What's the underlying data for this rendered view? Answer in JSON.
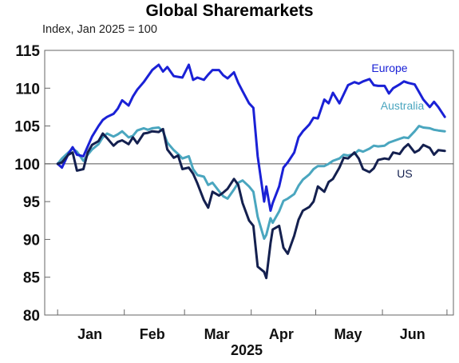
{
  "chart_data": {
    "type": "line",
    "title": "Global Sharemarkets",
    "subtitle": "Index, Jan 2025 = 100",
    "xlabel": "2025",
    "x_tick_labels": [
      "Jan",
      "Feb",
      "Mar",
      "Apr",
      "May",
      "Jun"
    ],
    "ylim": [
      80,
      115
    ],
    "yticks": [
      80,
      85,
      90,
      95,
      100,
      105,
      110,
      115
    ],
    "grid": false,
    "reference_line": 100,
    "series": [
      {
        "name": "Europe",
        "color": "#1a21d6",
        "values": [
          [
            "2025-01-01",
            100
          ],
          [
            "2025-01-03",
            99.5
          ],
          [
            "2025-01-06",
            101.3
          ],
          [
            "2025-01-08",
            102.2
          ],
          [
            "2025-01-10",
            101.2
          ],
          [
            "2025-01-13",
            101
          ],
          [
            "2025-01-15",
            102.3
          ],
          [
            "2025-01-17",
            103.6
          ],
          [
            "2025-01-20",
            105
          ],
          [
            "2025-01-22",
            105.8
          ],
          [
            "2025-01-24",
            106.2
          ],
          [
            "2025-01-27",
            106.6
          ],
          [
            "2025-01-29",
            107.3
          ],
          [
            "2025-01-31",
            108.4
          ],
          [
            "2025-02-03",
            107.7
          ],
          [
            "2025-02-05",
            108.9
          ],
          [
            "2025-02-07",
            109.8
          ],
          [
            "2025-02-10",
            110.8
          ],
          [
            "2025-02-12",
            111.6
          ],
          [
            "2025-02-14",
            112.4
          ],
          [
            "2025-02-17",
            113.1
          ],
          [
            "2025-02-19",
            112.2
          ],
          [
            "2025-02-21",
            112.8
          ],
          [
            "2025-02-24",
            111.6
          ],
          [
            "2025-02-26",
            111.5
          ],
          [
            "2025-02-28",
            111.4
          ],
          [
            "2025-03-03",
            113.1
          ],
          [
            "2025-03-05",
            111.1
          ],
          [
            "2025-03-07",
            111.4
          ],
          [
            "2025-03-10",
            111.1
          ],
          [
            "2025-03-12",
            111.8
          ],
          [
            "2025-03-14",
            112.4
          ],
          [
            "2025-03-17",
            112.4
          ],
          [
            "2025-03-19",
            111.7
          ],
          [
            "2025-03-21",
            111.3
          ],
          [
            "2025-03-24",
            112.1
          ],
          [
            "2025-03-26",
            110.7
          ],
          [
            "2025-03-28",
            109.6
          ],
          [
            "2025-03-31",
            108
          ],
          [
            "2025-04-02",
            107.4
          ],
          [
            "2025-04-04",
            101
          ],
          [
            "2025-04-07",
            95
          ],
          [
            "2025-04-08",
            97
          ],
          [
            "2025-04-10",
            93.8
          ],
          [
            "2025-04-11",
            94.8
          ],
          [
            "2025-04-14",
            97
          ],
          [
            "2025-04-16",
            99.5
          ],
          [
            "2025-04-18",
            100.2
          ],
          [
            "2025-04-21",
            101.5
          ],
          [
            "2025-04-23",
            103.5
          ],
          [
            "2025-04-25",
            104.3
          ],
          [
            "2025-04-28",
            105.2
          ],
          [
            "2025-04-30",
            106.1
          ],
          [
            "2025-05-02",
            106
          ],
          [
            "2025-05-05",
            108.5
          ],
          [
            "2025-05-07",
            108
          ],
          [
            "2025-05-09",
            109.4
          ],
          [
            "2025-05-12",
            108
          ],
          [
            "2025-05-14",
            109.2
          ],
          [
            "2025-05-16",
            110.4
          ],
          [
            "2025-05-19",
            110.8
          ],
          [
            "2025-05-21",
            110.6
          ],
          [
            "2025-05-23",
            110.9
          ],
          [
            "2025-05-26",
            111.2
          ],
          [
            "2025-05-28",
            110.4
          ],
          [
            "2025-05-30",
            110.3
          ],
          [
            "2025-06-02",
            110.3
          ],
          [
            "2025-06-04",
            109.3
          ],
          [
            "2025-06-06",
            110
          ],
          [
            "2025-06-09",
            110.5
          ],
          [
            "2025-06-11",
            110.9
          ],
          [
            "2025-06-13",
            110.7
          ],
          [
            "2025-06-16",
            110.5
          ],
          [
            "2025-06-18",
            109.5
          ],
          [
            "2025-06-20",
            108.5
          ],
          [
            "2025-06-23",
            107.5
          ],
          [
            "2025-06-25",
            108.2
          ],
          [
            "2025-06-27",
            107.5
          ],
          [
            "2025-06-30",
            106.2
          ]
        ]
      },
      {
        "name": "Australia",
        "color": "#4aa6bf",
        "values": [
          [
            "2025-01-01",
            100
          ],
          [
            "2025-01-03",
            100.7
          ],
          [
            "2025-01-06",
            101.5
          ],
          [
            "2025-01-08",
            102
          ],
          [
            "2025-01-10",
            101.6
          ],
          [
            "2025-01-13",
            100.4
          ],
          [
            "2025-01-15",
            101.2
          ],
          [
            "2025-01-17",
            101.9
          ],
          [
            "2025-01-20",
            102.6
          ],
          [
            "2025-01-22",
            103.5
          ],
          [
            "2025-01-24",
            104
          ],
          [
            "2025-01-27",
            103.6
          ],
          [
            "2025-01-29",
            103.9
          ],
          [
            "2025-01-31",
            104.3
          ],
          [
            "2025-02-03",
            103.5
          ],
          [
            "2025-02-05",
            103.7
          ],
          [
            "2025-02-07",
            104.4
          ],
          [
            "2025-02-10",
            104.7
          ],
          [
            "2025-02-12",
            104.5
          ],
          [
            "2025-02-14",
            104.7
          ],
          [
            "2025-02-17",
            104.8
          ],
          [
            "2025-02-19",
            104.3
          ],
          [
            "2025-02-21",
            102.8
          ],
          [
            "2025-02-24",
            101.8
          ],
          [
            "2025-02-26",
            101.3
          ],
          [
            "2025-02-28",
            100.7
          ],
          [
            "2025-03-03",
            101
          ],
          [
            "2025-03-05",
            99.3
          ],
          [
            "2025-03-07",
            98.5
          ],
          [
            "2025-03-10",
            98.3
          ],
          [
            "2025-03-12",
            97.2
          ],
          [
            "2025-03-14",
            97.5
          ],
          [
            "2025-03-17",
            96.4
          ],
          [
            "2025-03-19",
            95.7
          ],
          [
            "2025-03-21",
            95.4
          ],
          [
            "2025-03-24",
            96.6
          ],
          [
            "2025-03-26",
            97.5
          ],
          [
            "2025-03-28",
            97.8
          ],
          [
            "2025-03-31",
            97
          ],
          [
            "2025-04-02",
            96.3
          ],
          [
            "2025-04-04",
            93
          ],
          [
            "2025-04-07",
            90.1
          ],
          [
            "2025-04-08",
            90.6
          ],
          [
            "2025-04-10",
            92.8
          ],
          [
            "2025-04-11",
            92.2
          ],
          [
            "2025-04-14",
            93.7
          ],
          [
            "2025-04-16",
            95.1
          ],
          [
            "2025-04-18",
            95.4
          ],
          [
            "2025-04-21",
            96
          ],
          [
            "2025-04-23",
            97.1
          ],
          [
            "2025-04-25",
            97.9
          ],
          [
            "2025-04-28",
            98.6
          ],
          [
            "2025-04-30",
            99.3
          ],
          [
            "2025-05-02",
            99.7
          ],
          [
            "2025-05-05",
            99.7
          ],
          [
            "2025-05-07",
            100
          ],
          [
            "2025-05-09",
            100.4
          ],
          [
            "2025-05-12",
            100.7
          ],
          [
            "2025-05-14",
            101.2
          ],
          [
            "2025-05-16",
            101.1
          ],
          [
            "2025-05-19",
            101.3
          ],
          [
            "2025-05-21",
            101.8
          ],
          [
            "2025-05-23",
            101.6
          ],
          [
            "2025-05-26",
            102
          ],
          [
            "2025-05-28",
            102.4
          ],
          [
            "2025-05-30",
            102.3
          ],
          [
            "2025-06-02",
            102.4
          ],
          [
            "2025-06-04",
            102.8
          ],
          [
            "2025-06-06",
            103
          ],
          [
            "2025-06-09",
            103.3
          ],
          [
            "2025-06-11",
            103.5
          ],
          [
            "2025-06-13",
            103.4
          ],
          [
            "2025-06-16",
            104.3
          ],
          [
            "2025-06-18",
            105
          ],
          [
            "2025-06-20",
            104.8
          ],
          [
            "2025-06-23",
            104.7
          ],
          [
            "2025-06-25",
            104.5
          ],
          [
            "2025-06-27",
            104.4
          ],
          [
            "2025-06-30",
            104.3
          ]
        ]
      },
      {
        "name": "US",
        "color": "#14204f",
        "values": [
          [
            "2025-01-01",
            100
          ],
          [
            "2025-01-03",
            100.2
          ],
          [
            "2025-01-06",
            101.2
          ],
          [
            "2025-01-08",
            101.5
          ],
          [
            "2025-01-10",
            99.1
          ],
          [
            "2025-01-13",
            99.3
          ],
          [
            "2025-01-15",
            101.5
          ],
          [
            "2025-01-17",
            102.5
          ],
          [
            "2025-01-20",
            103
          ],
          [
            "2025-01-22",
            104
          ],
          [
            "2025-01-24",
            103.4
          ],
          [
            "2025-01-27",
            102.4
          ],
          [
            "2025-01-29",
            102.9
          ],
          [
            "2025-01-31",
            103.1
          ],
          [
            "2025-02-03",
            102.6
          ],
          [
            "2025-02-05",
            103.5
          ],
          [
            "2025-02-07",
            102.7
          ],
          [
            "2025-02-10",
            104
          ],
          [
            "2025-02-12",
            104.1
          ],
          [
            "2025-02-14",
            104.3
          ],
          [
            "2025-02-17",
            104.2
          ],
          [
            "2025-02-19",
            104.6
          ],
          [
            "2025-02-21",
            101.9
          ],
          [
            "2025-02-24",
            100.8
          ],
          [
            "2025-02-26",
            101.1
          ],
          [
            "2025-02-28",
            99.3
          ],
          [
            "2025-03-03",
            99.5
          ],
          [
            "2025-03-05",
            98.7
          ],
          [
            "2025-03-07",
            97.4
          ],
          [
            "2025-03-10",
            95.2
          ],
          [
            "2025-03-12",
            94.2
          ],
          [
            "2025-03-14",
            96.3
          ],
          [
            "2025-03-17",
            95.8
          ],
          [
            "2025-03-19",
            96.2
          ],
          [
            "2025-03-21",
            96.7
          ],
          [
            "2025-03-24",
            98
          ],
          [
            "2025-03-26",
            97.2
          ],
          [
            "2025-03-28",
            94.8
          ],
          [
            "2025-03-31",
            92.5
          ],
          [
            "2025-04-02",
            91.8
          ],
          [
            "2025-04-04",
            86.4
          ],
          [
            "2025-04-07",
            85.7
          ],
          [
            "2025-04-08",
            84.9
          ],
          [
            "2025-04-10",
            89.5
          ],
          [
            "2025-04-11",
            91.3
          ],
          [
            "2025-04-14",
            91.8
          ],
          [
            "2025-04-16",
            88.9
          ],
          [
            "2025-04-18",
            88.1
          ],
          [
            "2025-04-21",
            90.5
          ],
          [
            "2025-04-23",
            92.6
          ],
          [
            "2025-04-25",
            93.8
          ],
          [
            "2025-04-28",
            94.3
          ],
          [
            "2025-04-30",
            95
          ],
          [
            "2025-05-02",
            97
          ],
          [
            "2025-05-05",
            96.3
          ],
          [
            "2025-05-07",
            97.6
          ],
          [
            "2025-05-09",
            98
          ],
          [
            "2025-05-12",
            99.5
          ],
          [
            "2025-05-14",
            100.8
          ],
          [
            "2025-05-16",
            100.7
          ],
          [
            "2025-05-19",
            101.5
          ],
          [
            "2025-05-21",
            100.7
          ],
          [
            "2025-05-23",
            99.3
          ],
          [
            "2025-05-26",
            98.9
          ],
          [
            "2025-05-28",
            99.4
          ],
          [
            "2025-05-30",
            100.5
          ],
          [
            "2025-06-02",
            100.7
          ],
          [
            "2025-06-04",
            100.6
          ],
          [
            "2025-06-06",
            101.5
          ],
          [
            "2025-06-09",
            101.3
          ],
          [
            "2025-06-11",
            102.1
          ],
          [
            "2025-06-13",
            102.6
          ],
          [
            "2025-06-16",
            101.5
          ],
          [
            "2025-06-18",
            101.8
          ],
          [
            "2025-06-20",
            102.5
          ],
          [
            "2025-06-23",
            102.1
          ],
          [
            "2025-06-25",
            101.2
          ],
          [
            "2025-06-27",
            101.8
          ],
          [
            "2025-06-30",
            101.7
          ]
        ]
      }
    ]
  }
}
